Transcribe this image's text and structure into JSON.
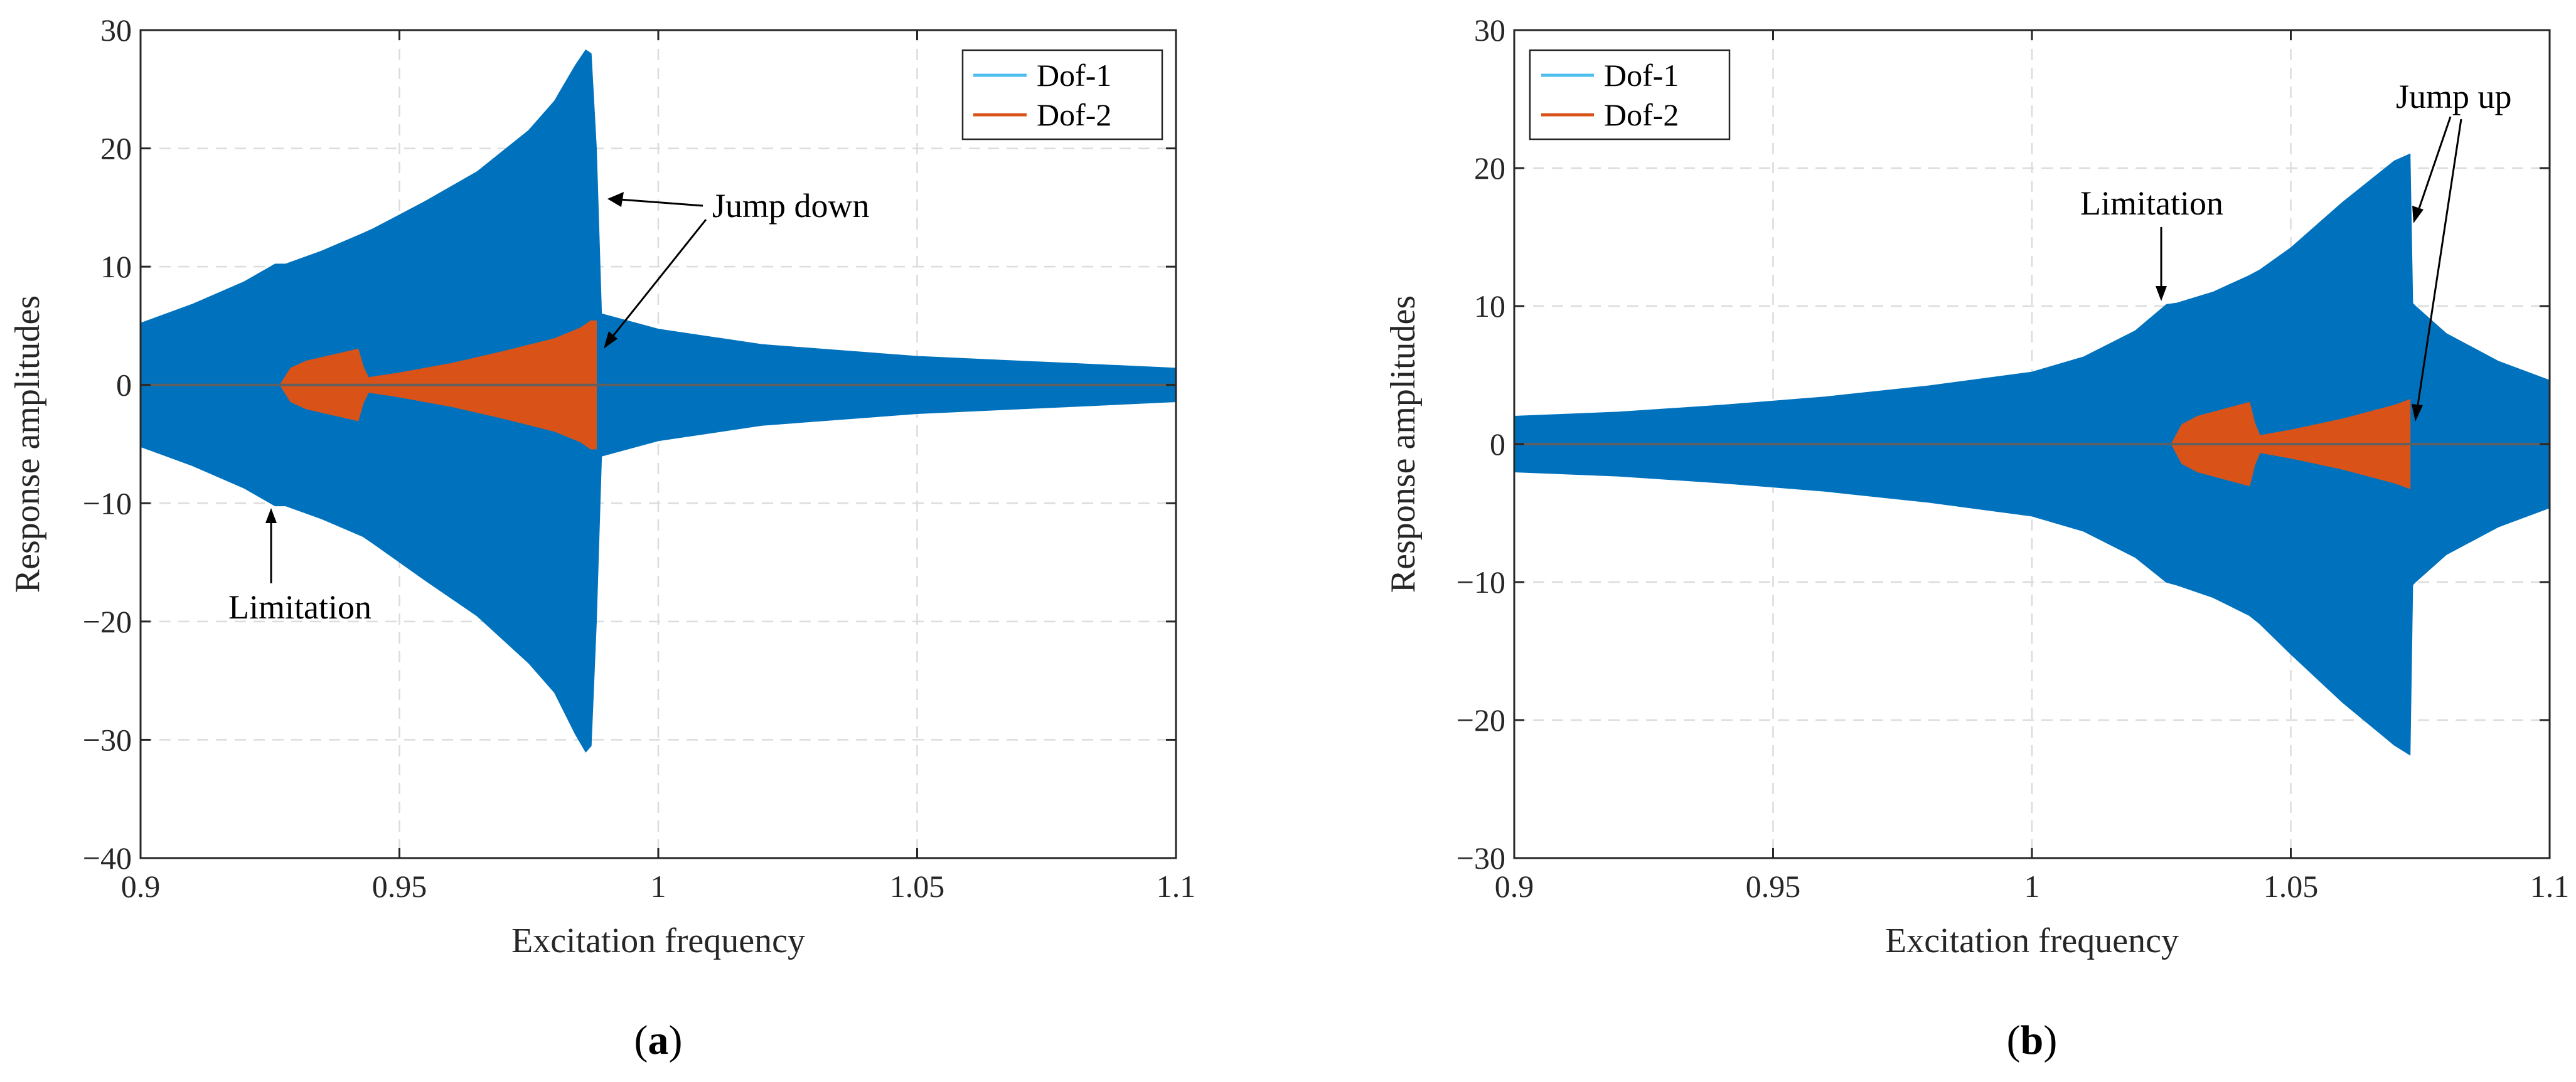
{
  "chart_data": [
    {
      "type": "area",
      "panel_label": "a",
      "xlabel": "Excitation frequency",
      "ylabel": "Response amplitudes",
      "xlim": [
        0.9,
        1.1
      ],
      "ylim": [
        -40,
        30
      ],
      "xticks": [
        0.9,
        0.95,
        1,
        1.05,
        1.1
      ],
      "xtick_labels": [
        "0.9",
        "0.95",
        "1",
        "1.05",
        "1.1"
      ],
      "yticks": [
        -40,
        -30,
        -20,
        -10,
        0,
        10,
        20,
        30
      ],
      "ytick_labels": [
        "−40",
        "−30",
        "−20",
        "−10",
        "0",
        "10",
        "20",
        "30"
      ],
      "grid": true,
      "legend": {
        "position": "top-right",
        "entries": [
          "Dof-1",
          "Dof-2"
        ]
      },
      "series": [
        {
          "name": "Dof-1",
          "color": "#0072BD",
          "x": [
            0.9,
            0.91,
            0.92,
            0.926,
            0.928,
            0.935,
            0.943,
            0.945,
            0.955,
            0.965,
            0.975,
            0.98,
            0.984,
            0.986,
            0.987,
            0.988,
            0.989,
            1.0,
            1.02,
            1.05,
            1.08,
            1.1
          ],
          "upper": [
            5.2,
            6.8,
            8.7,
            10.2,
            10.2,
            11.3,
            12.8,
            13.2,
            15.5,
            18.0,
            21.5,
            24.0,
            27.0,
            28.3,
            28.0,
            20.0,
            6.0,
            4.7,
            3.4,
            2.4,
            1.8,
            1.4
          ],
          "lower": [
            -5.2,
            -6.8,
            -8.7,
            -10.2,
            -10.2,
            -11.3,
            -12.8,
            -13.4,
            -16.5,
            -19.5,
            -23.5,
            -26.0,
            -29.5,
            -31.0,
            -30.5,
            -20.0,
            -6.0,
            -4.7,
            -3.4,
            -2.4,
            -1.8,
            -1.4
          ]
        },
        {
          "name": "Dof-2",
          "color": "#D95319",
          "x": [
            0.927,
            0.929,
            0.932,
            0.936,
            0.94,
            0.942,
            0.943,
            0.944,
            0.95,
            0.96,
            0.97,
            0.98,
            0.985,
            0.987,
            0.988
          ],
          "upper": [
            0.0,
            1.4,
            2.0,
            2.4,
            2.8,
            3.0,
            1.5,
            0.6,
            1.0,
            1.8,
            2.8,
            3.9,
            4.8,
            5.4,
            5.4
          ],
          "lower": [
            0.0,
            -1.4,
            -2.0,
            -2.4,
            -2.8,
            -3.0,
            -1.5,
            -0.6,
            -1.0,
            -1.8,
            -2.8,
            -3.9,
            -4.8,
            -5.4,
            -5.4
          ]
        }
      ],
      "annotations": [
        {
          "text": "Jump down",
          "target": [
            0.989,
            11.0
          ]
        },
        {
          "text": "Jump down",
          "target": [
            0.988,
            3.5
          ]
        },
        {
          "text": "Limitation",
          "target": [
            0.926,
            -10.5
          ]
        }
      ]
    },
    {
      "type": "area",
      "panel_label": "b",
      "xlabel": "Excitation frequency",
      "ylabel": "Response amplitudes",
      "xlim": [
        0.9,
        1.1
      ],
      "ylim": [
        -30,
        30
      ],
      "xticks": [
        0.9,
        0.95,
        1,
        1.05,
        1.1
      ],
      "xtick_labels": [
        "0.9",
        "0.95",
        "1",
        "1.05",
        "1.1"
      ],
      "yticks": [
        -30,
        -20,
        -10,
        0,
        10,
        20,
        30
      ],
      "ytick_labels": [
        "−30",
        "−20",
        "−10",
        "0",
        "10",
        "20",
        "30"
      ],
      "grid": true,
      "legend": {
        "position": "top-left",
        "entries": [
          "Dof-1",
          "Dof-2"
        ]
      },
      "series": [
        {
          "name": "Dof-1",
          "color": "#0072BD",
          "x": [
            0.9,
            0.92,
            0.94,
            0.96,
            0.98,
            1.0,
            1.01,
            1.02,
            1.026,
            1.028,
            1.035,
            1.042,
            1.044,
            1.05,
            1.06,
            1.07,
            1.073,
            1.0735,
            1.074,
            1.08,
            1.09,
            1.1
          ],
          "upper": [
            2.0,
            2.3,
            2.8,
            3.4,
            4.2,
            5.2,
            6.3,
            8.2,
            10.1,
            10.2,
            11.0,
            12.2,
            12.6,
            14.2,
            17.5,
            20.5,
            21.0,
            10.2,
            10.0,
            8.0,
            6.0,
            4.6
          ],
          "lower": [
            -2.0,
            -2.3,
            -2.8,
            -3.4,
            -4.2,
            -5.2,
            -6.3,
            -8.2,
            -10.0,
            -10.2,
            -11.1,
            -12.4,
            -13.0,
            -15.2,
            -18.7,
            -21.8,
            -22.5,
            -10.2,
            -10.0,
            -8.0,
            -6.0,
            -4.6
          ]
        },
        {
          "name": "Dof-2",
          "color": "#D95319",
          "x": [
            1.027,
            1.029,
            1.032,
            1.036,
            1.04,
            1.042,
            1.043,
            1.044,
            1.05,
            1.06,
            1.07,
            1.073
          ],
          "upper": [
            0.0,
            1.4,
            2.0,
            2.4,
            2.8,
            3.0,
            1.5,
            0.6,
            1.0,
            1.8,
            2.8,
            3.2
          ],
          "lower": [
            0.0,
            -1.4,
            -2.0,
            -2.4,
            -2.8,
            -3.0,
            -1.5,
            -0.6,
            -1.0,
            -1.8,
            -2.8,
            -3.2
          ]
        }
      ],
      "annotations": [
        {
          "text": "Jump up",
          "target": [
            1.074,
            16.0
          ]
        },
        {
          "text": "Jump up",
          "target": [
            1.074,
            2.0
          ]
        },
        {
          "text": "Limitation",
          "target": [
            1.025,
            10.4
          ]
        }
      ]
    }
  ]
}
